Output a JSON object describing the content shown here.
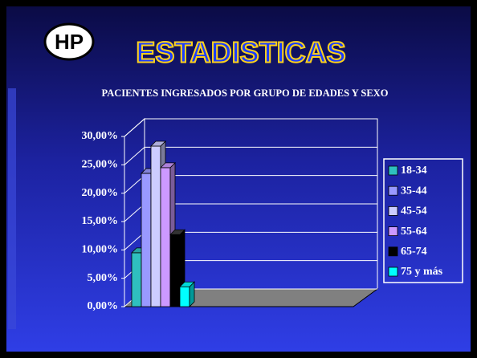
{
  "logo": "HP",
  "chart_data": {
    "type": "bar3d",
    "title": "ESTADISTICAS",
    "subtitle": "PACIENTES INGRESADOS POR GRUPO DE EDADES Y SEXO",
    "categories": [
      null
    ],
    "series": [
      {
        "name": "18-34",
        "color": "#2fbfbf",
        "values": [
          9.5
        ]
      },
      {
        "name": "35-44",
        "color": "#9999ff",
        "values": [
          23.5
        ]
      },
      {
        "name": "45-54",
        "color": "#ccccff",
        "values": [
          28.3
        ]
      },
      {
        "name": "55-64",
        "color": "#cc99ff",
        "values": [
          24.5
        ]
      },
      {
        "name": "65-74",
        "color": "#000000",
        "values": [
          12.7
        ]
      },
      {
        "name": "75 y más",
        "color": "#00ffff",
        "values": [
          3.5
        ]
      }
    ],
    "ylim": [
      0,
      30
    ],
    "yticks": [
      {
        "value": 0,
        "label": "0,00%"
      },
      {
        "value": 5,
        "label": "5,00%"
      },
      {
        "value": 10,
        "label": "10,00%"
      },
      {
        "value": 15,
        "label": "15,00%"
      },
      {
        "value": 20,
        "label": "20,00%"
      },
      {
        "value": 25,
        "label": "25,00%"
      },
      {
        "value": 30,
        "label": "30,00%"
      }
    ],
    "grid": true,
    "legend": "right"
  }
}
